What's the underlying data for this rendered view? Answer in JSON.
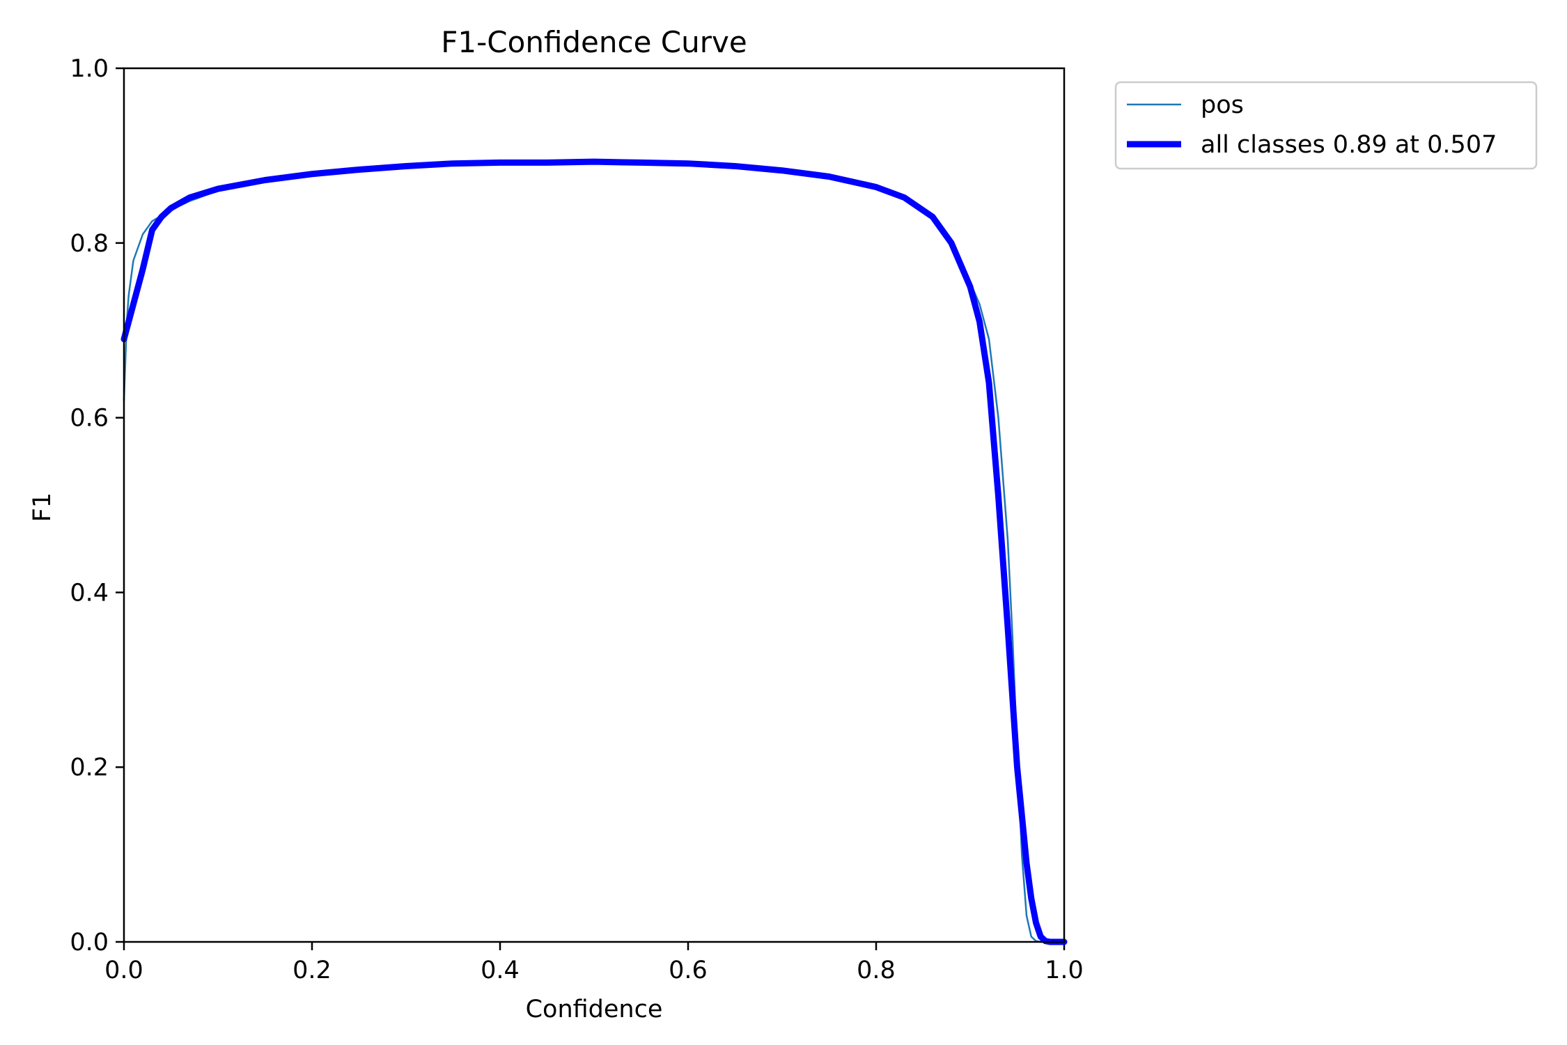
{
  "chart_data": {
    "type": "line",
    "title": "F1-Confidence Curve",
    "xlabel": "Confidence",
    "ylabel": "F1",
    "xlim": [
      0.0,
      1.0
    ],
    "ylim": [
      0.0,
      1.0
    ],
    "x_ticks": [
      "0.0",
      "0.2",
      "0.4",
      "0.6",
      "0.8",
      "1.0"
    ],
    "y_ticks": [
      "0.0",
      "0.2",
      "0.4",
      "0.6",
      "0.8",
      "1.0"
    ],
    "grid": false,
    "legend_placement": "outside-top-right",
    "series": [
      {
        "name": "pos",
        "color": "#1f77b4",
        "line_style": "thin",
        "x": [
          0.0,
          0.003,
          0.005,
          0.01,
          0.02,
          0.03,
          0.05,
          0.07,
          0.1,
          0.15,
          0.2,
          0.25,
          0.3,
          0.35,
          0.4,
          0.45,
          0.5,
          0.55,
          0.6,
          0.65,
          0.7,
          0.75,
          0.8,
          0.83,
          0.86,
          0.88,
          0.9,
          0.91,
          0.92,
          0.93,
          0.94,
          0.945,
          0.95,
          0.955,
          0.96,
          0.965,
          0.97,
          0.975,
          0.98,
          1.0
        ],
        "y": [
          0.62,
          0.71,
          0.74,
          0.78,
          0.81,
          0.825,
          0.838,
          0.848,
          0.86,
          0.872,
          0.879,
          0.884,
          0.888,
          0.891,
          0.892,
          0.892,
          0.893,
          0.892,
          0.891,
          0.888,
          0.883,
          0.876,
          0.864,
          0.852,
          0.83,
          0.8,
          0.755,
          0.73,
          0.69,
          0.6,
          0.46,
          0.35,
          0.22,
          0.1,
          0.03,
          0.006,
          0.001,
          0.0,
          0.0,
          0.0
        ]
      },
      {
        "name": "all classes 0.89 at 0.507",
        "color": "#0000ff",
        "line_style": "thick",
        "x": [
          0.0,
          0.01,
          0.02,
          0.03,
          0.04,
          0.05,
          0.07,
          0.1,
          0.15,
          0.2,
          0.25,
          0.3,
          0.35,
          0.4,
          0.45,
          0.5,
          0.55,
          0.6,
          0.65,
          0.7,
          0.75,
          0.8,
          0.83,
          0.86,
          0.88,
          0.9,
          0.91,
          0.92,
          0.93,
          0.94,
          0.95,
          0.96,
          0.965,
          0.97,
          0.975,
          0.98,
          0.985,
          1.0
        ],
        "y": [
          0.69,
          0.73,
          0.77,
          0.815,
          0.83,
          0.84,
          0.852,
          0.862,
          0.872,
          0.879,
          0.884,
          0.888,
          0.891,
          0.892,
          0.892,
          0.893,
          0.892,
          0.891,
          0.888,
          0.883,
          0.876,
          0.864,
          0.852,
          0.83,
          0.8,
          0.75,
          0.71,
          0.64,
          0.51,
          0.36,
          0.2,
          0.09,
          0.05,
          0.022,
          0.006,
          0.001,
          0.0,
          0.0
        ]
      }
    ]
  }
}
